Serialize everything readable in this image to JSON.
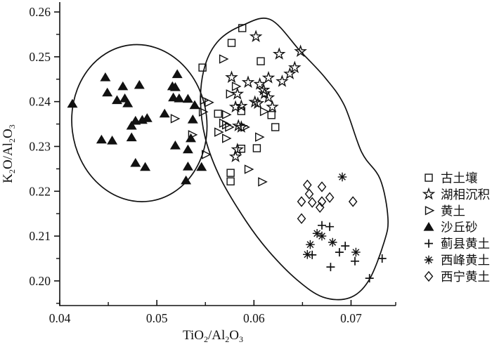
{
  "figure": {
    "background": "#ffffff",
    "ink_color": "#111111",
    "legend": {
      "items": [
        {
          "key": "paleosol",
          "marker": "square",
          "label": "古土壤"
        },
        {
          "key": "lacustrine",
          "marker": "star",
          "label": "湖相沉积"
        },
        {
          "key": "loess",
          "marker": "triangle-right",
          "label": "黄土"
        },
        {
          "key": "dune-sand",
          "marker": "triangle-up-filled",
          "label": "沙丘砂"
        },
        {
          "key": "jixian-loess",
          "marker": "plus",
          "label": "蓟县黄土"
        },
        {
          "key": "xifeng-loess",
          "marker": "asterisk",
          "label": "西峰黄土"
        },
        {
          "key": "xining-loess",
          "marker": "diamond",
          "label": "西宁黄土"
        }
      ]
    }
  },
  "chart_data": {
    "type": "scatter",
    "title": "",
    "xlabel": "TiO2/Al2O3",
    "ylabel": "K2O/Al2O3",
    "xlim": [
      0.04,
      0.0746
    ],
    "ylim": [
      0.1945,
      0.2622
    ],
    "grid": false,
    "legend_position": "right-outside",
    "x_ticks": [
      {
        "v": 0.04,
        "label": "0.04"
      },
      {
        "v": 0.05,
        "label": "0.05"
      },
      {
        "v": 0.06,
        "label": "0.06"
      },
      {
        "v": 0.07,
        "label": "0.07"
      }
    ],
    "x_minor_ticks": [
      0.045,
      0.055,
      0.065,
      0.0746
    ],
    "y_ticks": [
      {
        "v": 0.26,
        "label": "0.26"
      },
      {
        "v": 0.25,
        "label": "0.25"
      },
      {
        "v": 0.24,
        "label": "0.24"
      },
      {
        "v": 0.23,
        "label": "0.23"
      },
      {
        "v": 0.22,
        "label": "0.22"
      },
      {
        "v": 0.21,
        "label": "0.21"
      },
      {
        "v": 0.2,
        "label": "0.20"
      }
    ],
    "y_minor_ticks": [
      0.255,
      0.245,
      0.235,
      0.225,
      0.215,
      0.205,
      0.195
    ],
    "series": [
      {
        "key": "paleosol",
        "name": "古土壤",
        "marker": "square",
        "points": [
          [
            0.0588,
            0.2564
          ],
          [
            0.0577,
            0.2531
          ],
          [
            0.0607,
            0.249
          ],
          [
            0.0547,
            0.2476
          ],
          [
            0.0563,
            0.2373
          ],
          [
            0.0587,
            0.2379
          ],
          [
            0.0618,
            0.237
          ],
          [
            0.0622,
            0.2343
          ],
          [
            0.0603,
            0.2296
          ],
          [
            0.0587,
            0.2295
          ],
          [
            0.0576,
            0.2241
          ],
          [
            0.0576,
            0.2222
          ]
        ]
      },
      {
        "key": "lacustrine",
        "name": "湖相沉积",
        "marker": "star",
        "points": [
          [
            0.0602,
            0.2545
          ],
          [
            0.0626,
            0.2506
          ],
          [
            0.0648,
            0.2512
          ],
          [
            0.0642,
            0.2476
          ],
          [
            0.0637,
            0.2462
          ],
          [
            0.0629,
            0.2445
          ],
          [
            0.0615,
            0.2453
          ],
          [
            0.0594,
            0.2443
          ],
          [
            0.0606,
            0.2439
          ],
          [
            0.061,
            0.2426
          ],
          [
            0.0611,
            0.2418
          ],
          [
            0.0615,
            0.2409
          ],
          [
            0.0601,
            0.2399
          ],
          [
            0.0604,
            0.2396
          ],
          [
            0.0581,
            0.2388
          ],
          [
            0.0587,
            0.239
          ],
          [
            0.0619,
            0.2388
          ],
          [
            0.0577,
            0.2454
          ],
          [
            0.0583,
            0.2417
          ],
          [
            0.0584,
            0.2346
          ],
          [
            0.0587,
            0.2343
          ],
          [
            0.0583,
            0.2293
          ],
          [
            0.0581,
            0.2277
          ]
        ]
      },
      {
        "key": "loess",
        "name": "黄土",
        "marker": "triangle-right",
        "points": [
          [
            0.0568,
            0.2495
          ],
          [
            0.0581,
            0.2434
          ],
          [
            0.0575,
            0.2417
          ],
          [
            0.0548,
            0.2403
          ],
          [
            0.0553,
            0.2398
          ],
          [
            0.0547,
            0.2377
          ],
          [
            0.0518,
            0.2362
          ],
          [
            0.0571,
            0.2371
          ],
          [
            0.061,
            0.2378
          ],
          [
            0.0568,
            0.2352
          ],
          [
            0.0571,
            0.2348
          ],
          [
            0.0574,
            0.2343
          ],
          [
            0.059,
            0.2343
          ],
          [
            0.0536,
            0.2326
          ],
          [
            0.0563,
            0.2332
          ],
          [
            0.0605,
            0.2321
          ],
          [
            0.0571,
            0.2318
          ],
          [
            0.055,
            0.2282
          ],
          [
            0.0594,
            0.2249
          ],
          [
            0.0608,
            0.2221
          ]
        ]
      },
      {
        "key": "dune-sand",
        "name": "沙丘砂",
        "marker": "triangle-up-filled",
        "points": [
          [
            0.0413,
            0.2395
          ],
          [
            0.0447,
            0.2454
          ],
          [
            0.0465,
            0.2434
          ],
          [
            0.0482,
            0.2437
          ],
          [
            0.0449,
            0.242
          ],
          [
            0.0459,
            0.2403
          ],
          [
            0.0467,
            0.2407
          ],
          [
            0.047,
            0.2396
          ],
          [
            0.0521,
            0.2461
          ],
          [
            0.0516,
            0.2434
          ],
          [
            0.0519,
            0.2432
          ],
          [
            0.0517,
            0.2409
          ],
          [
            0.0523,
            0.2407
          ],
          [
            0.0532,
            0.2406
          ],
          [
            0.0539,
            0.2392
          ],
          [
            0.0508,
            0.2373
          ],
          [
            0.049,
            0.2363
          ],
          [
            0.0537,
            0.236
          ],
          [
            0.0478,
            0.2357
          ],
          [
            0.0485,
            0.2359
          ],
          [
            0.0474,
            0.2346
          ],
          [
            0.0443,
            0.2315
          ],
          [
            0.0454,
            0.2313
          ],
          [
            0.0474,
            0.232
          ],
          [
            0.0535,
            0.2318
          ],
          [
            0.0519,
            0.2302
          ],
          [
            0.0532,
            0.2293
          ],
          [
            0.0532,
            0.2255
          ],
          [
            0.0546,
            0.2254
          ],
          [
            0.053,
            0.2224
          ],
          [
            0.0478,
            0.2263
          ],
          [
            0.0488,
            0.2254
          ]
        ]
      },
      {
        "key": "jixian-loess",
        "name": "蓟县黄土",
        "marker": "plus",
        "points": [
          [
            0.067,
            0.2124
          ],
          [
            0.0678,
            0.2121
          ],
          [
            0.066,
            0.2058
          ],
          [
            0.0688,
            0.2064
          ],
          [
            0.0694,
            0.2078
          ],
          [
            0.0704,
            0.2044
          ],
          [
            0.0679,
            0.2031
          ],
          [
            0.0719,
            0.2006
          ],
          [
            0.0732,
            0.205
          ]
        ]
      },
      {
        "key": "xifeng-loess",
        "name": "西峰黄土",
        "marker": "asterisk",
        "points": [
          [
            0.0691,
            0.2232
          ],
          [
            0.0665,
            0.2106
          ],
          [
            0.067,
            0.21
          ],
          [
            0.0658,
            0.2081
          ],
          [
            0.0681,
            0.2086
          ],
          [
            0.0705,
            0.2064
          ],
          [
            0.0655,
            0.2059
          ]
        ]
      },
      {
        "key": "xining-loess",
        "name": "西宁黄土",
        "marker": "diamond",
        "points": [
          [
            0.0655,
            0.2214
          ],
          [
            0.067,
            0.221
          ],
          [
            0.0657,
            0.2194
          ],
          [
            0.0649,
            0.2177
          ],
          [
            0.066,
            0.2175
          ],
          [
            0.0678,
            0.2186
          ],
          [
            0.067,
            0.2177
          ],
          [
            0.0668,
            0.2164
          ],
          [
            0.0702,
            0.2177
          ],
          [
            0.0649,
            0.2139
          ]
        ]
      }
    ],
    "annotations": {
      "left_ellipse": {
        "cx": 0.0482,
        "cy": 0.2352,
        "rx": 0.00695,
        "ry": 0.01755,
        "rotation_deg": -7
      },
      "right_outline": [
        [
          0.0617,
          0.2583
        ],
        [
          0.0648,
          0.2512
        ],
        [
          0.0673,
          0.2454
        ],
        [
          0.0693,
          0.2392
        ],
        [
          0.0711,
          0.2287
        ],
        [
          0.073,
          0.2227
        ],
        [
          0.0738,
          0.2141
        ],
        [
          0.0734,
          0.2086
        ],
        [
          0.0718,
          0.2
        ],
        [
          0.0698,
          0.1962
        ],
        [
          0.0671,
          0.1964
        ],
        [
          0.0644,
          0.2003
        ],
        [
          0.0615,
          0.2067
        ],
        [
          0.0592,
          0.2133
        ],
        [
          0.0566,
          0.2227
        ],
        [
          0.055,
          0.2318
        ],
        [
          0.0545,
          0.2407
        ],
        [
          0.055,
          0.2483
        ],
        [
          0.0564,
          0.2537
        ],
        [
          0.0588,
          0.257
        ]
      ]
    }
  }
}
